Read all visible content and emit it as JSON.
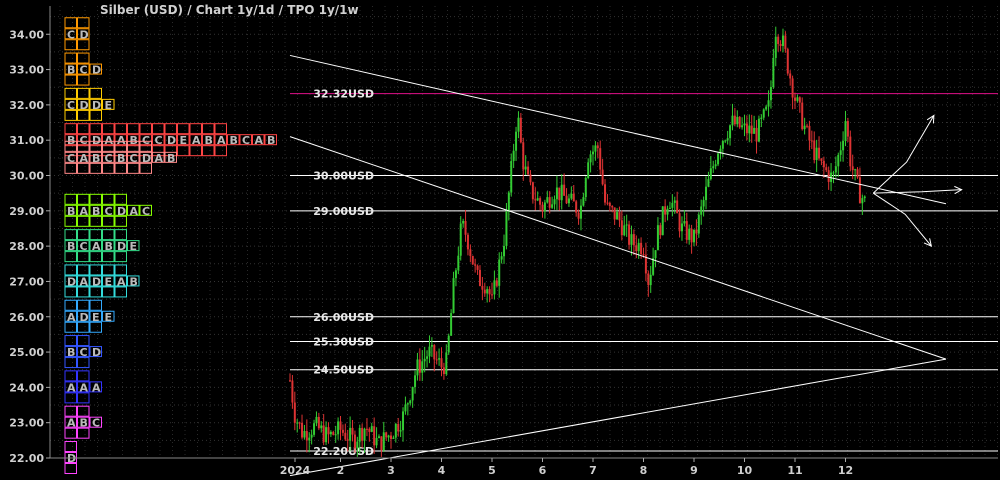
{
  "chart_data": {
    "type": "candlestick",
    "title": "Silber (USD) /  Chart 1y/1d / TPO 1y/1w",
    "ylim": [
      22.0,
      34.8
    ],
    "yticks": [
      "22.00",
      "23.00",
      "24.00",
      "25.00",
      "26.00",
      "27.00",
      "28.00",
      "29.00",
      "30.00",
      "31.00",
      "32.00",
      "33.00",
      "34.00"
    ],
    "xticks": [
      {
        "label": "2024",
        "month": 1
      },
      {
        "label": "2",
        "month": 2
      },
      {
        "label": "3",
        "month": 3
      },
      {
        "label": "4",
        "month": 4
      },
      {
        "label": "5",
        "month": 5
      },
      {
        "label": "6",
        "month": 6
      },
      {
        "label": "7",
        "month": 7
      },
      {
        "label": "8",
        "month": 8
      },
      {
        "label": "9",
        "month": 9
      },
      {
        "label": "10",
        "month": 10
      },
      {
        "label": "11",
        "month": 11
      },
      {
        "label": "12",
        "month": 12
      }
    ],
    "price_path": [
      [
        0.0,
        24.2
      ],
      [
        0.1,
        23.2
      ],
      [
        0.25,
        22.7
      ],
      [
        0.5,
        22.9
      ],
      [
        0.75,
        22.6
      ],
      [
        1.0,
        22.8
      ],
      [
        1.25,
        22.5
      ],
      [
        1.5,
        22.9
      ],
      [
        1.75,
        22.4
      ],
      [
        2.0,
        22.7
      ],
      [
        2.25,
        23.2
      ],
      [
        2.5,
        24.5
      ],
      [
        2.75,
        25.0
      ],
      [
        3.0,
        24.6
      ],
      [
        3.1,
        24.7
      ],
      [
        3.25,
        27.0
      ],
      [
        3.4,
        28.6
      ],
      [
        3.5,
        28.3
      ],
      [
        3.7,
        27.1
      ],
      [
        3.9,
        26.9
      ],
      [
        4.0,
        26.4
      ],
      [
        4.25,
        28.3
      ],
      [
        4.5,
        31.8
      ],
      [
        4.6,
        30.5
      ],
      [
        4.75,
        29.6
      ],
      [
        5.0,
        29.1
      ],
      [
        5.25,
        29.6
      ],
      [
        5.5,
        29.3
      ],
      [
        5.75,
        29.0
      ],
      [
        5.9,
        30.6
      ],
      [
        6.1,
        30.8
      ],
      [
        6.25,
        29.1
      ],
      [
        6.5,
        28.8
      ],
      [
        6.75,
        28.1
      ],
      [
        7.0,
        28.0
      ],
      [
        7.1,
        27.0
      ],
      [
        7.25,
        28.2
      ],
      [
        7.5,
        29.4
      ],
      [
        7.6,
        29.1
      ],
      [
        7.75,
        28.5
      ],
      [
        8.0,
        28.2
      ],
      [
        8.25,
        29.6
      ],
      [
        8.5,
        30.9
      ],
      [
        8.75,
        31.5
      ],
      [
        9.0,
        31.3
      ],
      [
        9.25,
        31.2
      ],
      [
        9.5,
        32.0
      ],
      [
        9.6,
        34.2
      ],
      [
        9.75,
        33.8
      ],
      [
        10.0,
        32.2
      ],
      [
        10.25,
        31.1
      ],
      [
        10.5,
        30.3
      ],
      [
        10.75,
        29.9
      ],
      [
        10.9,
        30.8
      ],
      [
        11.0,
        31.6
      ],
      [
        11.1,
        30.4
      ],
      [
        11.25,
        29.6
      ],
      [
        11.4,
        29.2
      ]
    ],
    "levels": [
      {
        "label": "32.32USD",
        "value": 32.32,
        "color": "#e0108a"
      },
      {
        "label": "30.00USD",
        "value": 30.0,
        "color": "#ffffff"
      },
      {
        "label": "29.00USD",
        "value": 29.0,
        "color": "#ffffff"
      },
      {
        "label": "26.00USD",
        "value": 26.0,
        "color": "#ffffff"
      },
      {
        "label": "25.30USD",
        "value": 25.3,
        "color": "#ffffff"
      },
      {
        "label": "24.50USD",
        "value": 24.5,
        "color": "#ffffff"
      },
      {
        "label": "22.20USD",
        "value": 22.2,
        "color": "#ffffff"
      }
    ],
    "trendlines": [
      {
        "from": [
          0.0,
          33.4
        ],
        "to": [
          12.99,
          29.2
        ]
      },
      {
        "from": [
          0.0,
          31.1
        ],
        "to": [
          12.99,
          24.8
        ]
      },
      {
        "from": [
          0.0,
          21.5
        ],
        "to": [
          12.99,
          24.8
        ]
      }
    ],
    "tpo_profile": [
      {
        "price": 34.0,
        "letters": "CD",
        "color": "#ff9900"
      },
      {
        "price": 33.0,
        "letters": "BCD",
        "color": "#ff9900"
      },
      {
        "price": 32.0,
        "letters": "CDDE",
        "color": "#ffcc00"
      },
      {
        "price": 31.0,
        "letters": "BCDAABCCDEABABCAB",
        "color": "#ff4444"
      },
      {
        "price": 30.5,
        "letters": "CABCBCDAB",
        "color": "#ff8888"
      },
      {
        "price": 29.0,
        "letters": "BABCDAC",
        "color": "#88ff00"
      },
      {
        "price": 28.0,
        "letters": "BCABDE",
        "color": "#33dd88"
      },
      {
        "price": 27.0,
        "letters": "DADEAB",
        "color": "#33dddd"
      },
      {
        "price": 26.0,
        "letters": "ADEE",
        "color": "#33aaff"
      },
      {
        "price": 25.0,
        "letters": "BCD",
        "color": "#3355ff"
      },
      {
        "price": 24.0,
        "letters": "AAA",
        "color": "#3333ff"
      },
      {
        "price": 23.0,
        "letters": "ABC",
        "color": "#ff44ff"
      },
      {
        "price": 22.0,
        "letters": "D",
        "color": "#ff44ff"
      }
    ],
    "candle_colors": {
      "up": "#33cc33",
      "down": "#dd3333"
    },
    "grid": true
  }
}
